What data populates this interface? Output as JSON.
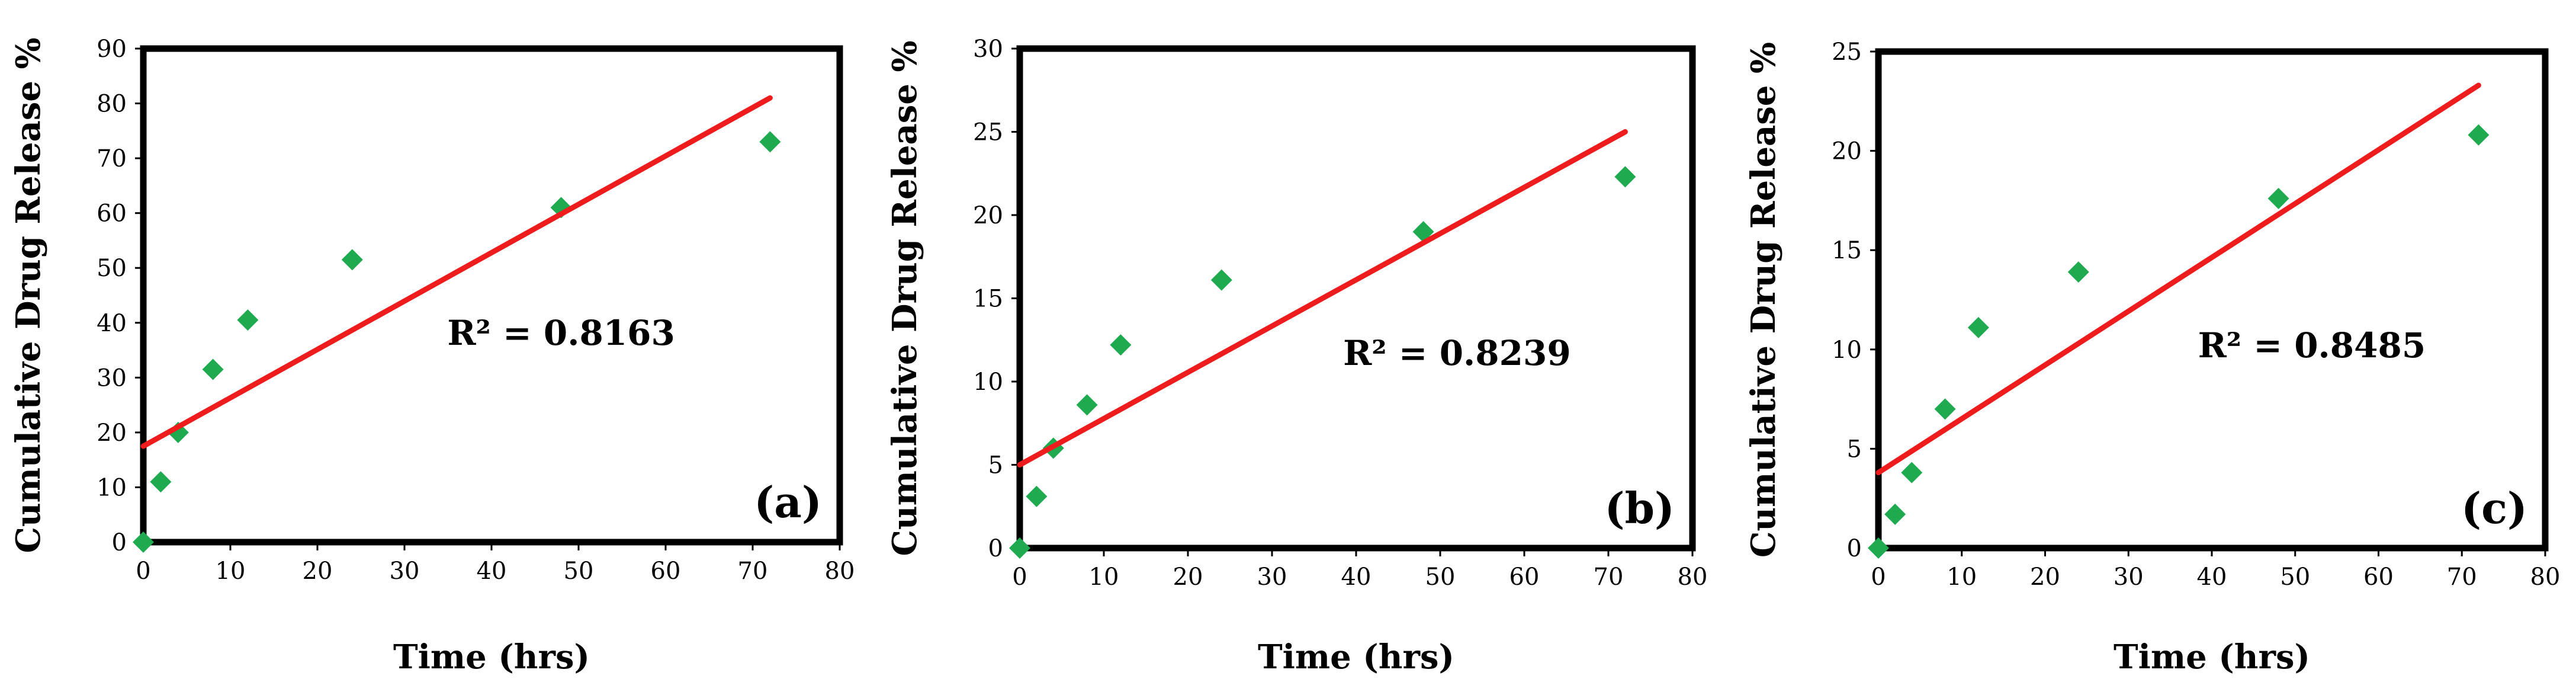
{
  "chart_data": [
    {
      "type": "scatter",
      "panel_label": "(a)",
      "title": "",
      "xlabel": "Time (hrs)",
      "ylabel": "Cumulative Drug Release %",
      "xlim": [
        0,
        80
      ],
      "ylim": [
        0,
        90
      ],
      "xticks": [
        0,
        10,
        20,
        30,
        40,
        50,
        60,
        70,
        80
      ],
      "yticks": [
        0,
        10,
        20,
        30,
        40,
        50,
        60,
        70,
        80,
        90
      ],
      "series": [
        {
          "name": "data",
          "marker": "diamond",
          "color": "#1faa4f",
          "x": [
            0,
            2,
            4,
            8,
            12,
            24,
            48,
            72
          ],
          "y": [
            0,
            11,
            20,
            31.5,
            40.5,
            51.5,
            61,
            73
          ]
        }
      ],
      "trendline": {
        "x_start": 0,
        "y_start": 17.5,
        "x_end": 72,
        "y_end": 81,
        "color": "#ee1c1c"
      },
      "r_squared": "R² = 0.8163",
      "r2_position": {
        "x": 48,
        "y": 36
      }
    },
    {
      "type": "scatter",
      "panel_label": "(b)",
      "title": "",
      "xlabel": "Time (hrs)",
      "ylabel": "Cumulative Drug Release %",
      "xlim": [
        0,
        80
      ],
      "ylim": [
        0,
        30
      ],
      "xticks": [
        0,
        10,
        20,
        30,
        40,
        50,
        60,
        70,
        80
      ],
      "yticks": [
        0,
        5,
        10,
        15,
        20,
        25,
        30
      ],
      "series": [
        {
          "name": "data",
          "marker": "diamond",
          "color": "#1faa4f",
          "x": [
            0,
            2,
            4,
            8,
            12,
            24,
            48,
            72
          ],
          "y": [
            0,
            3.1,
            6,
            8.6,
            12.2,
            16.1,
            19,
            22.3
          ]
        }
      ],
      "trendline": {
        "x_start": 0,
        "y_start": 5,
        "x_end": 72,
        "y_end": 25,
        "color": "#ee1c1c"
      },
      "r_squared": "R² = 0.8239",
      "r2_position": {
        "x": 52,
        "y": 11
      }
    },
    {
      "type": "scatter",
      "panel_label": "(c)",
      "title": "",
      "xlabel": "Time (hrs)",
      "ylabel": "Cumulative Drug Release %",
      "xlim": [
        0,
        80
      ],
      "ylim": [
        0,
        25
      ],
      "xticks": [
        0,
        10,
        20,
        30,
        40,
        50,
        60,
        70,
        80
      ],
      "yticks": [
        0,
        5,
        10,
        15,
        20,
        25
      ],
      "series": [
        {
          "name": "data",
          "marker": "diamond",
          "color": "#1faa4f",
          "x": [
            0,
            2,
            4,
            8,
            12,
            24,
            48,
            72
          ],
          "y": [
            0,
            1.7,
            3.8,
            7,
            11.1,
            13.9,
            17.6,
            20.8
          ]
        }
      ],
      "trendline": {
        "x_start": 0,
        "y_start": 3.8,
        "x_end": 72,
        "y_end": 23.3,
        "color": "#ee1c1c"
      },
      "r_squared": "R² = 0.8485",
      "r2_position": {
        "x": 52,
        "y": 9.6
      }
    }
  ]
}
